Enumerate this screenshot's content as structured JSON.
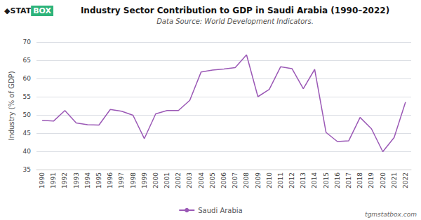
{
  "chart_data": {
    "type": "line",
    "title": "Industry Sector Contribution to GDP in Saudi Arabia (1990–2022)",
    "subtitle": "Data Source: World Development Indicators.",
    "y_label": "Industry (% of GDP)",
    "annotations": [
      "◆STAT",
      "BOX",
      "tgmstatbox.com"
    ],
    "categories": [
      "1990",
      "1991",
      "1992",
      "1993",
      "1994",
      "1995",
      "1996",
      "1997",
      "1998",
      "1999",
      "2000",
      "2001",
      "2002",
      "2003",
      "2004",
      "2005",
      "2006",
      "2007",
      "2008",
      "2009",
      "2010",
      "2011",
      "2012",
      "2013",
      "2014",
      "2015",
      "2016",
      "2017",
      "2018",
      "2019",
      "2020",
      "2021",
      "2022"
    ],
    "series": [
      {
        "name": "Saudi Arabia",
        "color": "#9b59b6",
        "values": [
          48.5,
          48.3,
          51.2,
          47.8,
          47.3,
          47.2,
          51.5,
          51.0,
          49.9,
          43.5,
          50.3,
          51.2,
          51.2,
          54.0,
          61.8,
          62.3,
          62.6,
          63.0,
          66.5,
          55.0,
          57.0,
          63.2,
          62.7,
          57.2,
          62.5,
          45.2,
          42.7,
          42.9,
          49.3,
          46.2,
          39.9,
          43.8,
          53.5
        ]
      }
    ],
    "ylim": [
      35,
      70
    ],
    "yticks": [
      35,
      40,
      45,
      50,
      55,
      60,
      65,
      70
    ],
    "grid": true,
    "legend": "bottom"
  }
}
